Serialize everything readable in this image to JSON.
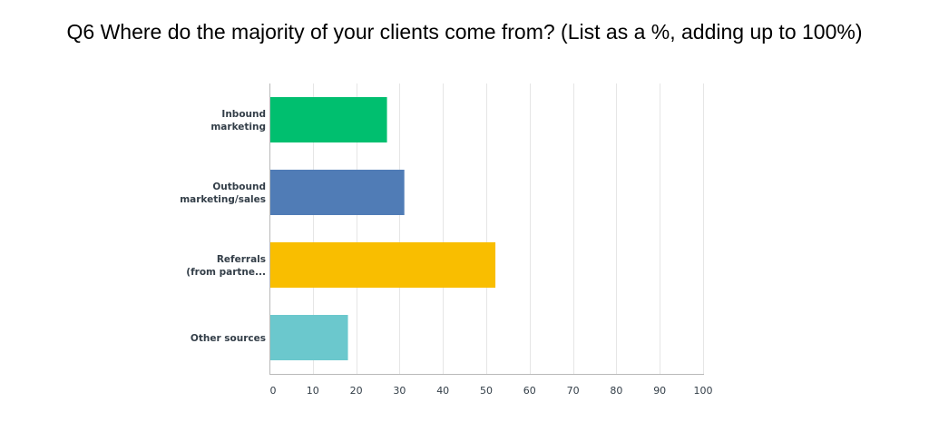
{
  "chart_data": {
    "type": "bar",
    "orientation": "horizontal",
    "title": "Q6 Where do the majority of your clients come from? (List as a %, adding up to 100%)",
    "categories": [
      [
        "Inbound",
        "marketing"
      ],
      [
        "Outbound",
        "marketing/sales"
      ],
      [
        "Referrals",
        "(from partne..."
      ],
      [
        "Other sources"
      ]
    ],
    "values": [
      27,
      31,
      52,
      18
    ],
    "colors": [
      "#00bf6f",
      "#507cb6",
      "#f9be00",
      "#6bc8cd"
    ],
    "xlim": [
      0,
      100
    ],
    "xticks": [
      0,
      10,
      20,
      30,
      40,
      50,
      60,
      70,
      80,
      90,
      100
    ],
    "xlabel": "",
    "ylabel": "",
    "grid": true
  }
}
